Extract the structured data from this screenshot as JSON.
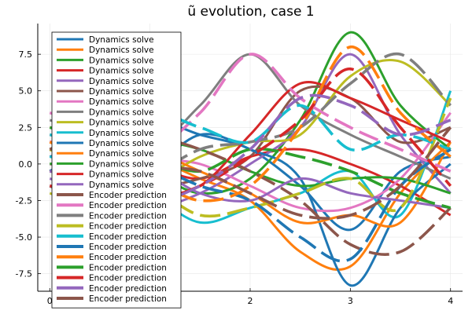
{
  "chart_data": {
    "type": "line",
    "title": "ũ evolution, case 1",
    "xlabel": "",
    "ylabel": "",
    "xlim": [
      -0.12,
      4.12
    ],
    "ylim": [
      -8.7,
      9.6
    ],
    "x_ticks": [
      0,
      1,
      2,
      3,
      4
    ],
    "x_tick_labels": [
      "0",
      "1",
      "2",
      "3",
      "4"
    ],
    "y_ticks": [
      -7.5,
      -5.0,
      -2.5,
      0.0,
      2.5,
      5.0,
      7.5
    ],
    "y_tick_labels": [
      "-7.5",
      "-5.0",
      "-2.5",
      "0.0",
      "2.5",
      "5.0",
      "7.5"
    ],
    "grid": true,
    "legend_position": "top-left",
    "palette": [
      "#1f77b4",
      "#ff7f0e",
      "#2ca02c",
      "#d62728",
      "#9467bd",
      "#8c564b",
      "#e377c2",
      "#7f7f7f",
      "#bcbd22",
      "#17becf"
    ],
    "series": [
      {
        "name": "Dynamics solve",
        "style": "solid",
        "x": [
          0,
          0.5,
          1,
          1.5,
          2,
          2.5,
          3,
          3.5,
          4
        ],
        "y": [
          0.5,
          1.5,
          3.0,
          2.0,
          1.0,
          -1.5,
          -4.5,
          -0.5,
          0.5
        ]
      },
      {
        "name": "Dynamics solve",
        "style": "solid",
        "x": [
          0,
          0.5,
          1,
          1.5,
          2,
          2.5,
          3,
          3.5,
          4
        ],
        "y": [
          -0.5,
          1.5,
          0.5,
          -1.0,
          -2.5,
          -6.0,
          -7.0,
          -2.0,
          1.5
        ]
      },
      {
        "name": "Dynamics solve",
        "style": "solid",
        "x": [
          0,
          0.5,
          1,
          1.5,
          2,
          2.5,
          3,
          3.5,
          4
        ],
        "y": [
          1.0,
          0.5,
          -0.5,
          -2.0,
          -1.0,
          3.0,
          9.0,
          4.0,
          1.0
        ]
      },
      {
        "name": "Dynamics solve",
        "style": "solid",
        "x": [
          0,
          0.5,
          1,
          1.5,
          2,
          2.5,
          3,
          3.5,
          4
        ],
        "y": [
          2.0,
          1.0,
          0.0,
          -1.0,
          0.5,
          1.0,
          0.0,
          -1.5,
          -3.5
        ]
      },
      {
        "name": "Dynamics solve",
        "style": "solid",
        "x": [
          0,
          0.5,
          1,
          1.5,
          2,
          2.5,
          3,
          3.5,
          4
        ],
        "y": [
          -1.0,
          -2.0,
          -3.0,
          -2.0,
          0.0,
          2.5,
          7.5,
          2.0,
          -2.0
        ]
      },
      {
        "name": "Dynamics solve",
        "style": "solid",
        "x": [
          0,
          0.5,
          1,
          1.5,
          2,
          2.5,
          3,
          3.5,
          4
        ],
        "y": [
          0.0,
          -0.5,
          -1.5,
          -1.0,
          0.5,
          5.0,
          4.5,
          1.5,
          2.5
        ]
      },
      {
        "name": "Dynamics solve",
        "style": "solid",
        "x": [
          0,
          0.5,
          1,
          1.5,
          2,
          2.5,
          3,
          3.5,
          4
        ],
        "y": [
          1.5,
          2.0,
          0.5,
          0.0,
          -1.5,
          -3.0,
          -3.0,
          -1.0,
          3.5
        ]
      },
      {
        "name": "Dynamics solve",
        "style": "solid",
        "x": [
          0,
          0.5,
          1,
          1.5,
          2,
          2.5,
          3,
          3.5,
          4
        ],
        "y": [
          3.0,
          2.0,
          1.0,
          4.0,
          7.5,
          4.0,
          2.0,
          0.5,
          -1.0
        ]
      },
      {
        "name": "Dynamics solve",
        "style": "solid",
        "x": [
          0,
          0.5,
          1,
          1.5,
          2,
          2.5,
          3,
          3.5,
          4
        ],
        "y": [
          -2.0,
          -3.0,
          -1.5,
          0.5,
          1.5,
          2.0,
          6.0,
          7.0,
          4.0
        ]
      },
      {
        "name": "Dynamics solve",
        "style": "solid",
        "x": [
          0,
          0.5,
          1,
          1.5,
          2,
          2.5,
          3,
          3.5,
          4
        ],
        "y": [
          0.5,
          -0.5,
          -2.0,
          -4.0,
          -3.0,
          -2.0,
          -0.5,
          -3.5,
          5.0
        ]
      },
      {
        "name": "Dynamics solve",
        "style": "solid",
        "x": [
          0,
          0.5,
          1,
          1.5,
          2,
          2.5,
          3,
          3.5,
          4
        ],
        "y": [
          -1.5,
          -2.5,
          -0.5,
          2.0,
          1.0,
          -1.0,
          -8.3,
          -3.0,
          0.0
        ]
      },
      {
        "name": "Dynamics solve",
        "style": "solid",
        "x": [
          0,
          0.5,
          1,
          1.5,
          2,
          2.5,
          3,
          3.5,
          4
        ],
        "y": [
          2.5,
          2.0,
          1.0,
          -0.5,
          -2.0,
          -4.0,
          -3.5,
          -4.0,
          1.5
        ]
      },
      {
        "name": "Dynamics solve",
        "style": "solid",
        "x": [
          0,
          0.5,
          1,
          1.5,
          2,
          2.5,
          3,
          3.5,
          4
        ],
        "y": [
          0.0,
          0.5,
          1.5,
          1.0,
          -0.5,
          -1.5,
          -1.0,
          -1.0,
          -2.0
        ]
      },
      {
        "name": "Dynamics solve",
        "style": "solid",
        "x": [
          0,
          0.5,
          1,
          1.5,
          2,
          2.5,
          3,
          3.5,
          4
        ],
        "y": [
          -0.5,
          -1.0,
          -2.0,
          -1.5,
          2.0,
          5.5,
          4.5,
          3.0,
          1.5
        ]
      },
      {
        "name": "Dynamics solve",
        "style": "solid",
        "x": [
          0,
          0.5,
          1,
          1.5,
          2,
          2.5,
          3,
          3.5,
          4
        ],
        "y": [
          1.0,
          1.5,
          0.0,
          -2.0,
          -2.5,
          -1.0,
          -2.0,
          -2.5,
          -3.0
        ]
      },
      {
        "name": "Encoder prediction",
        "style": "dashed",
        "x": [
          0,
          0.5,
          1,
          1.5,
          2,
          2.5,
          3,
          3.5,
          4
        ],
        "y": [
          1.0,
          2.5,
          2.0,
          1.0,
          -0.5,
          -2.5,
          -5.5,
          -6.0,
          -3.0
        ]
      },
      {
        "name": "Encoder prediction",
        "style": "dashed",
        "x": [
          0,
          0.5,
          1,
          1.5,
          2,
          2.5,
          3,
          3.5,
          4
        ],
        "y": [
          3.5,
          2.5,
          1.0,
          3.5,
          7.5,
          4.5,
          2.5,
          1.0,
          -0.5
        ]
      },
      {
        "name": "Encoder prediction",
        "style": "dashed",
        "x": [
          0,
          0.5,
          1,
          1.5,
          2,
          2.5,
          3,
          3.5,
          4
        ],
        "y": [
          -1.5,
          -3.0,
          -1.0,
          1.0,
          1.5,
          2.5,
          5.5,
          7.5,
          4.0
        ]
      },
      {
        "name": "Encoder prediction",
        "style": "dashed",
        "x": [
          0,
          0.5,
          1,
          1.5,
          2,
          2.5,
          3,
          3.5,
          4
        ],
        "y": [
          1.0,
          -0.5,
          -1.5,
          -3.5,
          -3.0,
          -2.0,
          -1.0,
          -3.0,
          4.5
        ]
      },
      {
        "name": "Encoder prediction",
        "style": "dashed",
        "x": [
          0,
          0.5,
          1,
          1.5,
          2,
          2.5,
          3,
          3.5,
          4
        ],
        "y": [
          2.0,
          1.5,
          3.5,
          2.5,
          1.5,
          4.0,
          1.0,
          2.0,
          1.0
        ]
      },
      {
        "name": "Encoder prediction",
        "style": "dashed",
        "x": [
          0,
          0.5,
          1,
          1.5,
          2,
          2.5,
          3,
          3.5,
          4
        ],
        "y": [
          -0.5,
          1.0,
          0.0,
          -1.5,
          -2.5,
          -5.0,
          -6.5,
          -1.5,
          1.0
        ]
      },
      {
        "name": "Encoder prediction",
        "style": "dashed",
        "x": [
          0,
          0.5,
          1,
          1.5,
          2,
          2.5,
          3,
          3.5,
          4
        ],
        "y": [
          1.5,
          0.0,
          -1.0,
          -2.5,
          -1.5,
          2.5,
          8.0,
          3.5,
          0.5
        ]
      },
      {
        "name": "Encoder prediction",
        "style": "dashed",
        "x": [
          0,
          0.5,
          1,
          1.5,
          2,
          2.5,
          3,
          3.5,
          4
        ],
        "y": [
          2.5,
          1.5,
          0.5,
          -0.5,
          1.0,
          0.5,
          -0.5,
          -2.0,
          -3.0
        ]
      },
      {
        "name": "Encoder prediction",
        "style": "dashed",
        "x": [
          0,
          0.5,
          1,
          1.5,
          2,
          2.5,
          3,
          3.5,
          4
        ],
        "y": [
          -1.5,
          -2.0,
          -2.5,
          -1.5,
          0.5,
          3.0,
          6.5,
          2.5,
          -1.5
        ]
      },
      {
        "name": "Encoder prediction",
        "style": "dashed",
        "x": [
          0,
          0.5,
          1,
          1.5,
          2,
          2.5,
          3,
          3.5,
          4
        ],
        "y": [
          -0.5,
          -1.0,
          -2.5,
          -1.5,
          1.0,
          4.5,
          4.0,
          2.0,
          3.0
        ]
      },
      {
        "name": "Encoder prediction",
        "style": "dashed",
        "x": [
          0,
          0.5,
          1,
          1.5,
          2,
          2.5,
          3,
          3.5,
          4
        ],
        "y": [
          1.0,
          1.5,
          0.0,
          -0.5,
          -2.0,
          -3.5,
          -3.5,
          -1.5,
          2.5
        ]
      }
    ]
  }
}
